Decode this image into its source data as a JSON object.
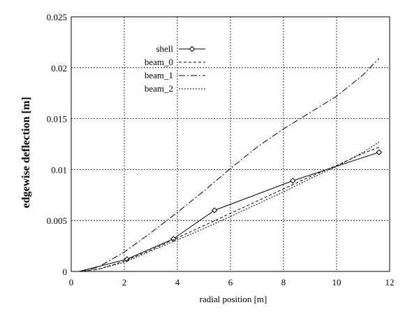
{
  "chart_data": {
    "type": "line",
    "title": "",
    "xlabel": "radial position [m]",
    "ylabel": "edgewise deflection [m]",
    "xlim": [
      0,
      12
    ],
    "ylim": [
      0,
      0.025
    ],
    "xticks": [
      0,
      2,
      4,
      6,
      8,
      10,
      12
    ],
    "xtick_labels": [
      "0",
      "2",
      "4",
      "6",
      "8",
      "10",
      "12"
    ],
    "yticks": [
      0,
      0.005,
      0.01,
      0.015,
      0.02,
      0.025
    ],
    "ytick_labels": [
      "0",
      "0.005",
      "0.01",
      "0.015",
      "0.02",
      "0.025"
    ],
    "grid": true,
    "grid_style": "dotted",
    "legend_position": "upper-left inside",
    "series": [
      {
        "name": "shell",
        "line": "solid",
        "marker": "diamond",
        "x": [
          0.3,
          2.1,
          3.85,
          5.4,
          8.35,
          11.6
        ],
        "y": [
          0,
          0.0012,
          0.0032,
          0.006,
          0.0089,
          0.0117
        ]
      },
      {
        "name": "beam_0",
        "line": "dashed",
        "marker": "none",
        "x": [
          0.3,
          1.0,
          2.0,
          3.0,
          4.0,
          5.0,
          6.0,
          7.0,
          8.0,
          9.0,
          10.0,
          11.0,
          11.6
        ],
        "y": [
          0,
          0.0002,
          0.001,
          0.0021,
          0.0033,
          0.0045,
          0.0057,
          0.0069,
          0.0081,
          0.0093,
          0.0104,
          0.0116,
          0.0122
        ]
      },
      {
        "name": "beam_1",
        "line": "dash-dot",
        "marker": "none",
        "x": [
          0.3,
          1.0,
          2.0,
          3.0,
          4.0,
          5.0,
          6.0,
          7.0,
          8.0,
          9.0,
          10.0,
          11.0,
          11.6
        ],
        "y": [
          0,
          0.0004,
          0.0019,
          0.0038,
          0.0058,
          0.0079,
          0.0101,
          0.0122,
          0.014,
          0.0156,
          0.0172,
          0.0193,
          0.0209
        ]
      },
      {
        "name": "beam_2",
        "line": "dotted",
        "marker": "none",
        "x": [
          0.3,
          1.0,
          2.0,
          3.0,
          4.0,
          5.0,
          6.0,
          7.0,
          8.0,
          9.0,
          10.0,
          11.0,
          11.6
        ],
        "y": [
          0,
          0.0002,
          0.0009,
          0.002,
          0.0031,
          0.0042,
          0.0054,
          0.0066,
          0.0078,
          0.0091,
          0.0103,
          0.0117,
          0.0127
        ]
      }
    ]
  }
}
